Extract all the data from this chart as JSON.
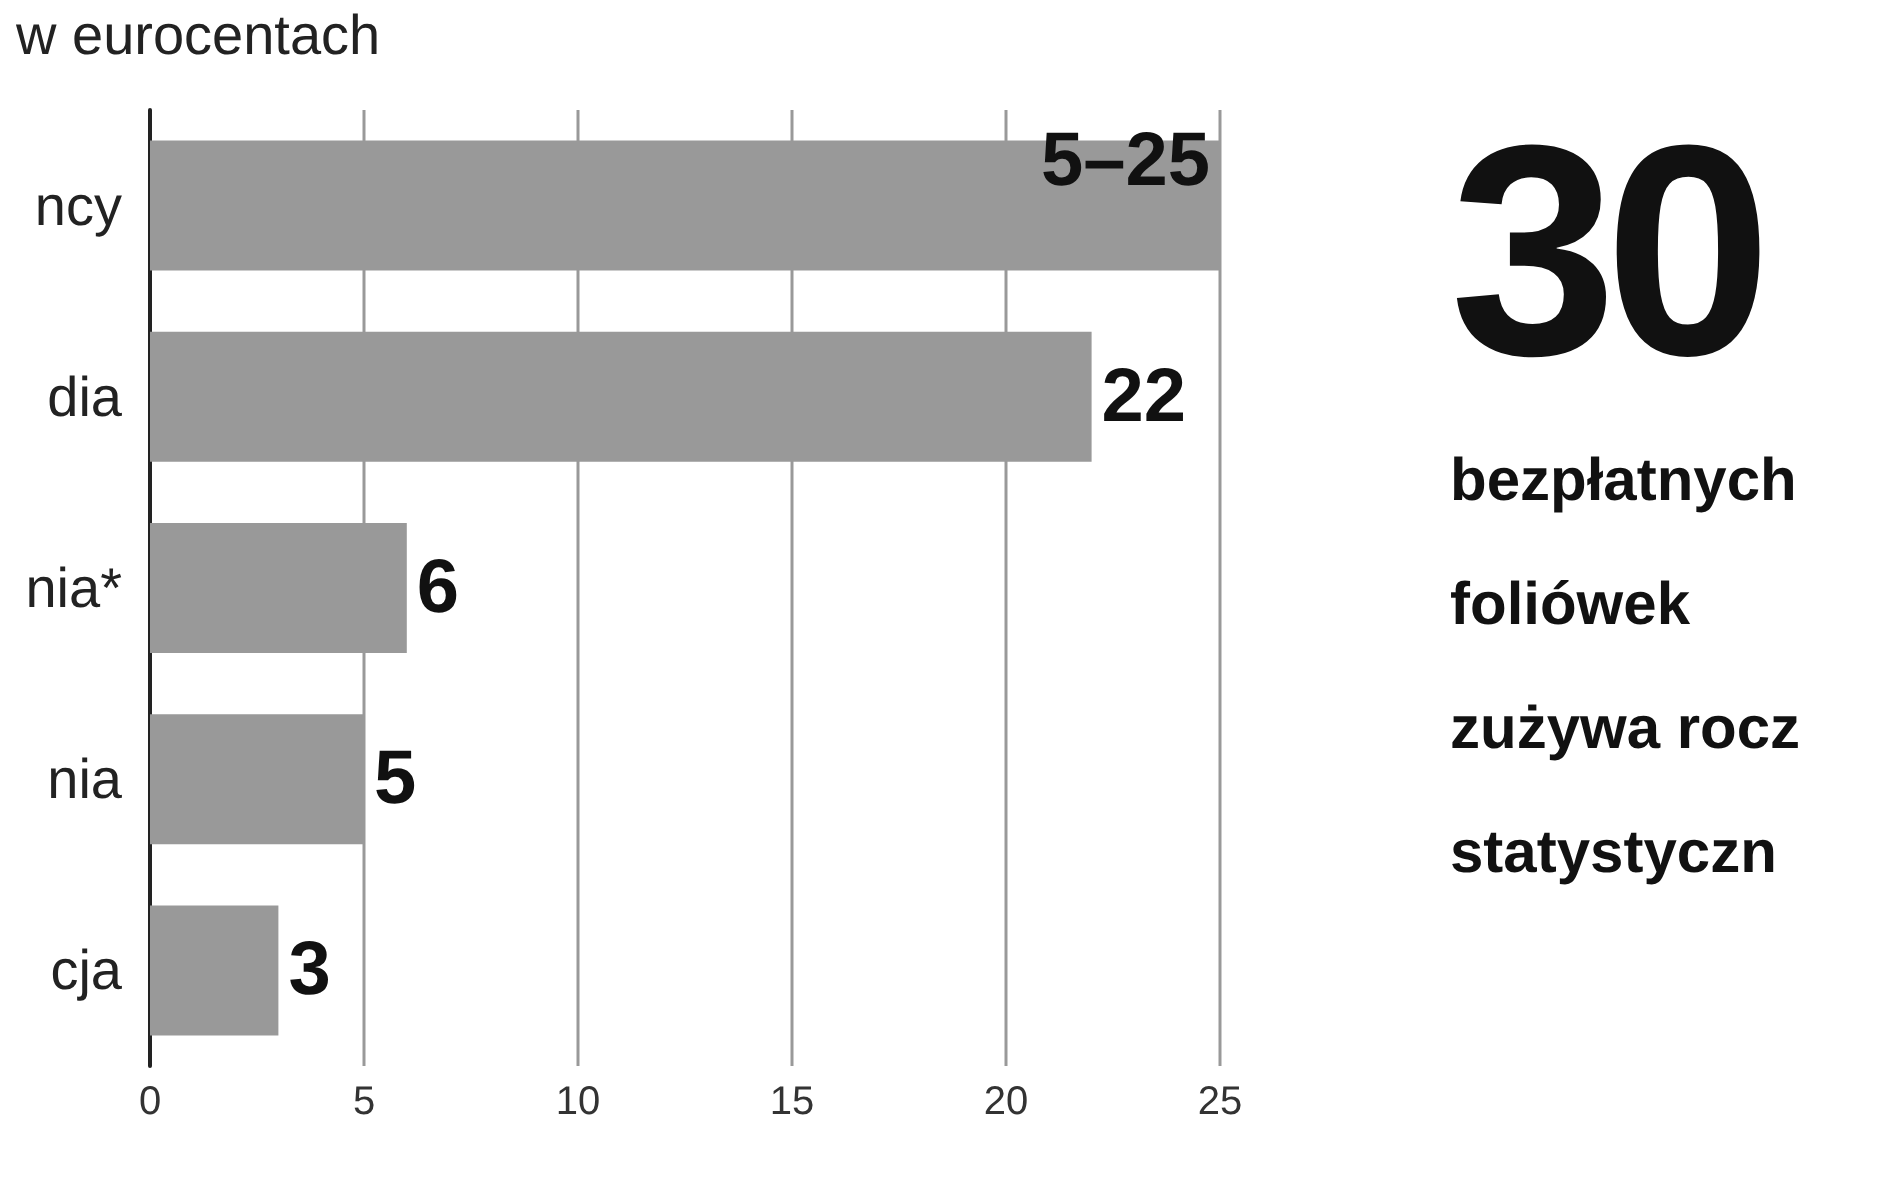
{
  "chart_data": {
    "type": "bar",
    "orientation": "horizontal",
    "subtitle": "w eurocentach",
    "categories": [
      "ncy",
      "dia",
      "nia*",
      "nia",
      "cja"
    ],
    "values": [
      25,
      22,
      6,
      5,
      3
    ],
    "value_labels": [
      "5–25",
      "22",
      "6",
      "5",
      "3"
    ],
    "color": "#999999",
    "xlim": [
      0,
      25
    ],
    "xticks": [
      0,
      5,
      10,
      15,
      20,
      25
    ],
    "grid": "x",
    "annotations": [
      "30",
      "bezpłatnych",
      "foliówek",
      "zużywa rocz",
      "statystyczn"
    ]
  }
}
